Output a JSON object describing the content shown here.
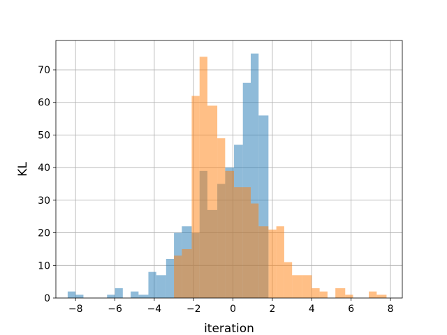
{
  "chart_data": {
    "type": "histogram",
    "title": "",
    "xlabel": "iteration",
    "ylabel": "KL",
    "xlim": [
      -9.0,
      8.6
    ],
    "ylim": [
      0,
      79
    ],
    "xticks": [
      -8,
      -6,
      -4,
      -2,
      0,
      2,
      4,
      6,
      8
    ],
    "yticks": [
      0,
      10,
      20,
      30,
      40,
      50,
      60,
      70
    ],
    "xtick_labels": [
      "−8",
      "−6",
      "−4",
      "−2",
      "0",
      "2",
      "4",
      "6",
      "8"
    ],
    "ytick_labels": [
      "0",
      "10",
      "20",
      "30",
      "40",
      "50",
      "60",
      "70"
    ],
    "grid": true,
    "series": [
      {
        "color": "#1f77b4",
        "alpha": 0.5,
        "bins": [
          {
            "x0": -8.4,
            "x1": -8.0,
            "count": 2
          },
          {
            "x0": -8.0,
            "x1": -7.6,
            "count": 1
          },
          {
            "x0": -6.4,
            "x1": -6.0,
            "count": 1
          },
          {
            "x0": -6.0,
            "x1": -5.6,
            "count": 3
          },
          {
            "x0": -5.2,
            "x1": -4.8,
            "count": 2
          },
          {
            "x0": -4.8,
            "x1": -4.3,
            "count": 1
          },
          {
            "x0": -4.3,
            "x1": -3.9,
            "count": 8
          },
          {
            "x0": -3.9,
            "x1": -3.4,
            "count": 7
          },
          {
            "x0": -3.4,
            "x1": -3.0,
            "count": 12
          },
          {
            "x0": -3.0,
            "x1": -2.6,
            "count": 20
          },
          {
            "x0": -2.6,
            "x1": -2.1,
            "count": 22
          },
          {
            "x0": -2.1,
            "x1": -1.7,
            "count": 20
          },
          {
            "x0": -1.7,
            "x1": -1.3,
            "count": 39
          },
          {
            "x0": -1.3,
            "x1": -0.8,
            "count": 27
          },
          {
            "x0": -0.8,
            "x1": -0.4,
            "count": 35
          },
          {
            "x0": -0.4,
            "x1": 0.05,
            "count": 40
          },
          {
            "x0": 0.05,
            "x1": 0.5,
            "count": 47
          },
          {
            "x0": 0.5,
            "x1": 0.9,
            "count": 66
          },
          {
            "x0": 0.9,
            "x1": 1.3,
            "count": 75
          },
          {
            "x0": 1.3,
            "x1": 1.8,
            "count": 56
          }
        ]
      },
      {
        "color": "#ff7f0e",
        "alpha": 0.5,
        "bins": [
          {
            "x0": -3.0,
            "x1": -2.6,
            "count": 13
          },
          {
            "x0": -2.6,
            "x1": -2.1,
            "count": 15
          },
          {
            "x0": -2.1,
            "x1": -1.7,
            "count": 62
          },
          {
            "x0": -1.7,
            "x1": -1.3,
            "count": 74
          },
          {
            "x0": -1.3,
            "x1": -0.8,
            "count": 59
          },
          {
            "x0": -0.8,
            "x1": -0.4,
            "count": 49
          },
          {
            "x0": -0.4,
            "x1": 0.05,
            "count": 39
          },
          {
            "x0": 0.05,
            "x1": 0.5,
            "count": 34
          },
          {
            "x0": 0.5,
            "x1": 0.9,
            "count": 34
          },
          {
            "x0": 0.9,
            "x1": 1.3,
            "count": 29
          },
          {
            "x0": 1.3,
            "x1": 1.8,
            "count": 22
          },
          {
            "x0": 1.8,
            "x1": 2.2,
            "count": 21
          },
          {
            "x0": 2.2,
            "x1": 2.6,
            "count": 22
          },
          {
            "x0": 2.6,
            "x1": 3.0,
            "count": 11
          },
          {
            "x0": 3.0,
            "x1": 3.5,
            "count": 7
          },
          {
            "x0": 3.5,
            "x1": 4.0,
            "count": 7
          },
          {
            "x0": 4.0,
            "x1": 4.4,
            "count": 3
          },
          {
            "x0": 4.4,
            "x1": 4.8,
            "count": 2
          },
          {
            "x0": 5.2,
            "x1": 5.7,
            "count": 3
          },
          {
            "x0": 5.7,
            "x1": 6.1,
            "count": 1
          },
          {
            "x0": 6.9,
            "x1": 7.3,
            "count": 2
          },
          {
            "x0": 7.3,
            "x1": 7.8,
            "count": 1
          }
        ]
      }
    ]
  }
}
